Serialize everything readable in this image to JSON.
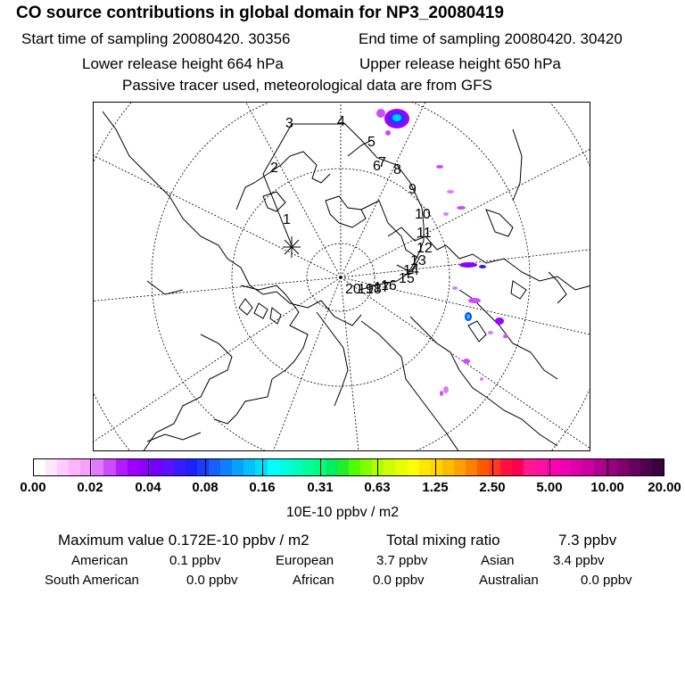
{
  "header": {
    "title": "CO  source contributions in global domain for NP3_20080419",
    "start_label": "Start time of sampling 20080420. 30356",
    "end_label": "End time of sampling 20080420. 30420",
    "lower_label": "Lower release height  664 hPa",
    "upper_label": "Upper release height  650 hPa",
    "tracer_note": "Passive tracer used, meteorological data are from GFS"
  },
  "map": {
    "trajectory_labels": [
      "1",
      "2",
      "3",
      "4",
      "5",
      "6",
      "7",
      "8",
      "9",
      "10",
      "11",
      "12",
      "13",
      "14",
      "15",
      "16",
      "17",
      "18",
      "19",
      "20"
    ],
    "release_marker": "asterisk-marker"
  },
  "colorbar": {
    "tick_labels": [
      "0.00",
      "0.02",
      "0.04",
      "0.08",
      "0.16",
      "0.31",
      "0.63",
      "1.25",
      "2.50",
      "5.00",
      "10.00",
      "20.00"
    ],
    "colors": [
      "#ffffff",
      "#ffe6ff",
      "#ffccff",
      "#ffb3ff",
      "#f7a1ff",
      "#e07aff",
      "#cc4dff",
      "#b31aff",
      "#a000ff",
      "#8c00ff",
      "#7200ff",
      "#5c10ff",
      "#3a1aff",
      "#2020ff",
      "#1a3cff",
      "#1560ff",
      "#1080ff",
      "#0aa0ff",
      "#05c0ff",
      "#00ddff",
      "#00ffff",
      "#00ffdd",
      "#00ffc0",
      "#00ff9c",
      "#00ff80",
      "#00ee60",
      "#20ee30",
      "#50ff00",
      "#80ff00",
      "#b0ff00",
      "#ccff00",
      "#e8ff00",
      "#ffff00",
      "#ffe800",
      "#ffd400",
      "#ffbb00",
      "#ffa000",
      "#ff8000",
      "#ff5a00",
      "#ff3a20",
      "#ff1040",
      "#ff0050",
      "#ff1a90",
      "#ff10a0",
      "#ff00b0",
      "#f000b0",
      "#e000a8",
      "#cc00a0",
      "#b00090",
      "#980080",
      "#800070",
      "#680060",
      "#500050",
      "#3a0040"
    ],
    "unit_label": "10E-10 ppbv / m2"
  },
  "summary": {
    "max_label": "Maximum value  0.172E-10 ppbv / m2",
    "total_label": "Total mixing ratio",
    "total_value": "7.3 ppbv",
    "regions": [
      {
        "name": "American",
        "value": "0.1 ppbv"
      },
      {
        "name": "European",
        "value": "3.7 ppbv"
      },
      {
        "name": "Asian",
        "value": "3.4 ppbv"
      },
      {
        "name": "South American",
        "value": "0.0 ppbv"
      },
      {
        "name": "African",
        "value": "0.0 ppbv"
      },
      {
        "name": "Australian",
        "value": "0.0 ppbv"
      }
    ]
  }
}
